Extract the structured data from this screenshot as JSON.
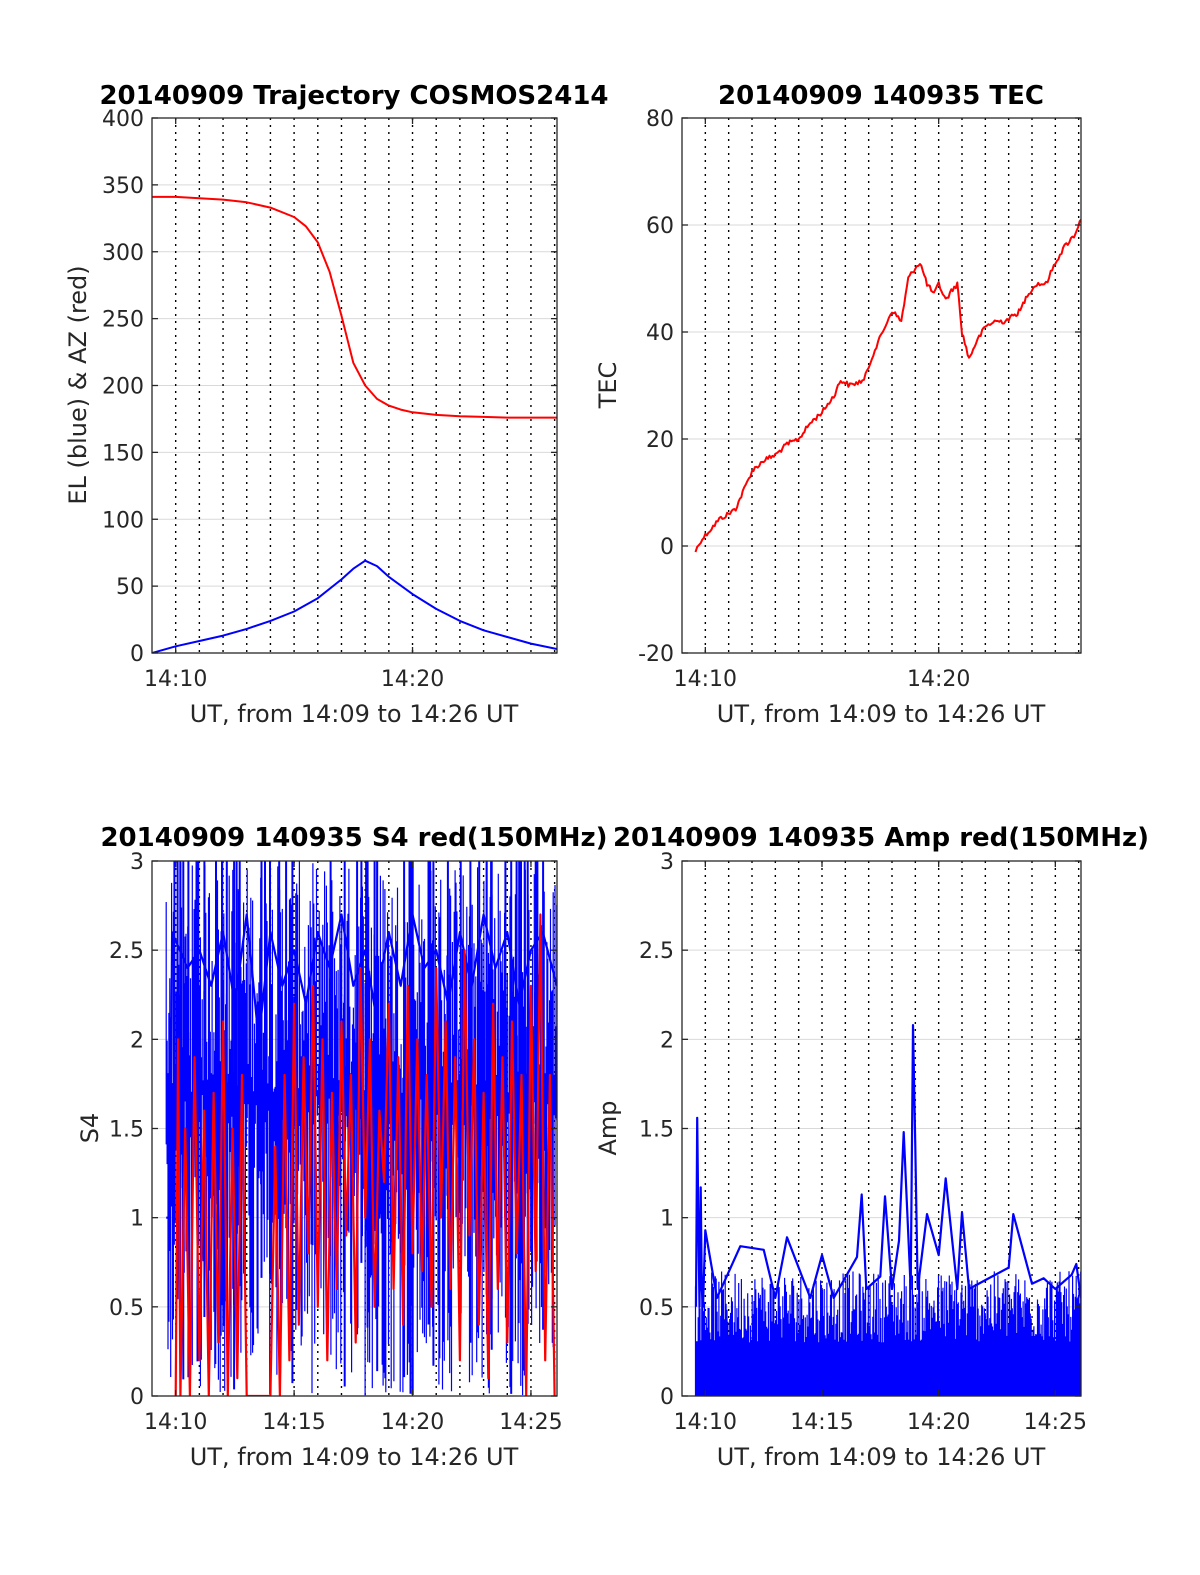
{
  "colors": {
    "red": "#ff0000",
    "blue": "#0000ff",
    "grid": "#d9d9d9",
    "vgrid": "#000000",
    "axis": "#262626"
  },
  "chart_data": [
    {
      "type": "line",
      "title": "20140909 Trajectory COSMOS2414",
      "xlabel": "UT, from 14:09 to 14:26 UT",
      "ylabel": "EL (blue) & AZ (red)",
      "xlim": [
        9.0,
        26.1
      ],
      "ylim": [
        0,
        400
      ],
      "yticks": [
        0,
        50,
        100,
        150,
        200,
        250,
        300,
        350,
        400
      ],
      "xticks": [
        {
          "v": 10,
          "label": "14:10"
        },
        {
          "v": 20,
          "label": "14:20"
        }
      ],
      "vgrid_minutes": [
        10,
        11,
        12,
        13,
        14,
        15,
        16,
        17,
        18,
        19,
        20,
        21,
        22,
        23,
        24,
        25,
        26
      ],
      "grid": true,
      "series": [
        {
          "color": "blue",
          "x": [
            9.0,
            10.0,
            11.0,
            12.0,
            13.0,
            14.0,
            15.0,
            16.0,
            17.0,
            17.5,
            18.0,
            18.5,
            19.0,
            20.0,
            21.0,
            22.0,
            23.0,
            24.0,
            25.0,
            26.1
          ],
          "y": [
            0,
            5,
            9,
            13,
            18,
            24,
            31,
            41,
            55,
            63,
            69,
            65,
            57,
            44,
            33,
            24,
            17,
            12,
            7,
            3
          ]
        },
        {
          "color": "red",
          "x": [
            9.0,
            10.0,
            11.0,
            12.0,
            13.0,
            14.0,
            15.0,
            15.5,
            16.0,
            16.5,
            17.0,
            17.5,
            18.0,
            18.5,
            19.0,
            19.5,
            20.0,
            21.0,
            22.0,
            23.0,
            24.0,
            25.0,
            26.1
          ],
          "y": [
            341,
            341,
            340,
            339,
            337,
            333,
            326,
            319,
            307,
            285,
            252,
            217,
            200,
            190,
            185,
            182,
            180,
            178,
            177,
            176.5,
            176,
            176,
            176
          ]
        }
      ]
    },
    {
      "type": "line",
      "title": "20140909 140935 TEC",
      "xlabel": "UT, from 14:09 to 14:26 UT",
      "ylabel": "TEC",
      "xlim": [
        9.0,
        26.1
      ],
      "ylim": [
        -20,
        80
      ],
      "yticks": [
        -20,
        0,
        20,
        40,
        60,
        80
      ],
      "xticks": [
        {
          "v": 10,
          "label": "14:10"
        },
        {
          "v": 20,
          "label": "14:20"
        }
      ],
      "vgrid_minutes": [
        10,
        11,
        12,
        13,
        14,
        15,
        16,
        17,
        18,
        19,
        20,
        21,
        22,
        23,
        24,
        25,
        26
      ],
      "grid": true,
      "series": [
        {
          "color": "red",
          "x": [
            9.58,
            9.8,
            10.2,
            10.6,
            11.0,
            11.3,
            11.6,
            12.0,
            12.5,
            13.0,
            13.5,
            14.0,
            14.5,
            15.0,
            15.5,
            15.8,
            16.2,
            16.8,
            17.2,
            17.6,
            18.0,
            18.4,
            18.7,
            19.0,
            19.2,
            19.5,
            19.8,
            20.0,
            20.3,
            20.6,
            20.8,
            21.0,
            21.3,
            21.6,
            22.0,
            22.4,
            22.8,
            23.2,
            23.5,
            23.8,
            24.2,
            24.6,
            25.0,
            25.4,
            25.8,
            26.1
          ],
          "y": [
            -1,
            1,
            3,
            5,
            6,
            7,
            10,
            14,
            16,
            17,
            19,
            20,
            23,
            25,
            28,
            31,
            30,
            31,
            36,
            40,
            44,
            42,
            50,
            52,
            53,
            49,
            47,
            49,
            46,
            48,
            49,
            40,
            35,
            38,
            41,
            42,
            42,
            43,
            44,
            47,
            49,
            49,
            53,
            56,
            58,
            61
          ]
        }
      ]
    },
    {
      "type": "line",
      "title": "20140909 140935 S4 red(150MHz)",
      "xlabel": "UT, from 14:09 to 14:26 UT",
      "ylabel": "S4",
      "xlim": [
        9.0,
        26.1
      ],
      "ylim": [
        0,
        3
      ],
      "yticks": [
        0,
        0.5,
        1,
        1.5,
        2,
        2.5,
        3
      ],
      "xticks": [
        {
          "v": 10,
          "label": "14:10"
        },
        {
          "v": 15,
          "label": "14:15"
        },
        {
          "v": 20,
          "label": "14:20"
        },
        {
          "v": 25,
          "label": "14:25"
        }
      ],
      "vgrid_minutes": [
        10,
        11,
        12,
        13,
        14,
        15,
        16,
        17,
        18,
        19,
        20,
        21,
        22,
        23,
        24,
        25,
        26
      ],
      "grid": true,
      "noise_band": {
        "color": "blue",
        "x_start": 9.6,
        "x_end": 26.1,
        "y_low": 0.0,
        "y_high": 3.0,
        "dense_low": 1.7
      },
      "series": [
        {
          "color": "blue",
          "x": [
            9.6,
            9.7,
            9.75,
            9.8,
            9.85,
            10.5,
            11.0,
            11.5,
            12.0,
            12.5,
            13.0,
            13.5,
            14.0,
            14.5,
            15.0,
            15.5,
            16.0,
            16.5,
            17.0,
            17.5,
            18.0,
            18.5,
            18.6,
            18.7,
            19.0,
            19.5,
            20.0,
            20.5,
            21.0,
            21.5,
            22.0,
            22.5,
            23.0,
            23.5,
            24.0,
            24.5,
            25.0,
            25.5,
            26.1
          ],
          "y": [
            1.0,
            1.0,
            1.2,
            1.65,
            2.6,
            2.4,
            2.5,
            2.3,
            2.6,
            2.2,
            2.7,
            2.0,
            2.6,
            2.3,
            2.5,
            2.2,
            2.6,
            2.4,
            2.7,
            2.3,
            2.5,
            2.1,
            1.0,
            2.4,
            2.6,
            2.3,
            2.7,
            2.4,
            2.5,
            2.2,
            2.6,
            2.3,
            2.7,
            2.4,
            2.6,
            2.2,
            2.5,
            2.6,
            2.3
          ]
        },
        {
          "color": "red",
          "x": [
            10.0,
            10.1,
            10.2,
            10.4,
            10.6,
            10.8,
            11.0,
            11.2,
            11.4,
            11.6,
            11.8,
            12.0,
            12.2,
            12.4,
            12.6,
            12.8,
            13.0,
            13.2,
            13.4,
            13.6,
            13.8,
            14.0,
            14.2,
            14.4,
            14.6,
            14.8,
            15.0,
            15.2,
            15.4,
            15.6,
            15.8,
            16.0,
            16.2,
            16.4,
            16.6,
            16.8,
            17.0,
            17.2,
            17.4,
            17.6,
            17.8,
            18.0,
            18.2,
            18.4,
            18.6,
            18.8,
            19.0,
            19.2,
            19.4,
            19.6,
            19.8,
            20.0,
            20.2,
            20.4,
            20.6,
            20.8,
            21.0,
            21.2,
            21.4,
            21.6,
            21.8,
            22.0,
            22.2,
            22.4,
            22.6,
            22.8,
            23.0,
            23.2,
            23.4,
            23.6,
            23.8,
            24.0,
            24.2,
            24.4,
            24.6,
            24.8,
            25.0,
            25.2,
            25.4,
            25.6,
            25.8,
            26.0
          ],
          "y": [
            0,
            2.0,
            0,
            1.5,
            0,
            1.9,
            0.2,
            1.6,
            0,
            1.7,
            0.3,
            2.1,
            0,
            1.5,
            0.1,
            1.8,
            0,
            0,
            0,
            0,
            0,
            0,
            1.4,
            0,
            1.8,
            0.2,
            2.2,
            0.4,
            1.9,
            0.8,
            2.3,
            0.5,
            2.0,
            0.2,
            1.7,
            0.6,
            2.1,
            0.9,
            1.8,
            0.3,
            2.4,
            1.0,
            2.0,
            0.5,
            1.6,
            1.2,
            2.2,
            0.6,
            1.9,
            0.4,
            2.3,
            0.8,
            2.0,
            0.7,
            1.8,
            0.5,
            2.4,
            1.0,
            2.1,
            0.6,
            1.9,
            0.2,
            2.5,
            0.9,
            2.0,
            0.4,
            1.7,
            0.1,
            2.2,
            0.6,
            1.9,
            0.3,
            2.1,
            0.8,
            1.8,
            0.0,
            2.3,
            0.7,
            2.7,
            0.2,
            1.8,
            0.0
          ]
        }
      ]
    },
    {
      "type": "line",
      "title": "20140909 140935 Amp red(150MHz)",
      "xlabel": "UT, from 14:09 to 14:26 UT",
      "ylabel": "Amp",
      "xlim": [
        9.0,
        26.1
      ],
      "ylim": [
        0,
        3
      ],
      "yticks": [
        0,
        0.5,
        1,
        1.5,
        2,
        2.5,
        3
      ],
      "xticks": [
        {
          "v": 10,
          "label": "14:10"
        },
        {
          "v": 15,
          "label": "14:15"
        },
        {
          "v": 20,
          "label": "14:20"
        },
        {
          "v": 25,
          "label": "14:25"
        }
      ],
      "vgrid_minutes": [
        10,
        11,
        12,
        13,
        14,
        15,
        16,
        17,
        18,
        19,
        20,
        21,
        22,
        23,
        24,
        25,
        26
      ],
      "grid": true,
      "noise_band": {
        "color": "blue",
        "x_start": 9.58,
        "x_end": 26.1,
        "y_low": 0.0,
        "y_high": 0.7,
        "dense_low": 0.0
      },
      "series": [
        {
          "color": "blue",
          "x": [
            9.6,
            9.65,
            9.7,
            9.75,
            9.8,
            9.85,
            9.9,
            10.0,
            10.5,
            11.5,
            12.5,
            13.0,
            13.5,
            14.5,
            15.0,
            15.5,
            16.5,
            16.7,
            16.9,
            17.5,
            17.7,
            18.0,
            18.3,
            18.5,
            18.8,
            18.9,
            19.0,
            19.1,
            19.5,
            20.0,
            20.3,
            20.8,
            21.0,
            21.3,
            22.0,
            23.0,
            23.2,
            24.0,
            24.5,
            25.0,
            25.7,
            25.9,
            26.1
          ],
          "y": [
            0.5,
            1.56,
            1.0,
            0.5,
            1.17,
            0.6,
            0.5,
            0.93,
            0.55,
            0.84,
            0.82,
            0.55,
            0.89,
            0.55,
            0.79,
            0.55,
            0.78,
            1.13,
            0.6,
            0.67,
            1.12,
            0.6,
            0.87,
            1.48,
            0.6,
            2.08,
            1.4,
            0.6,
            1.02,
            0.79,
            1.22,
            0.6,
            1.03,
            0.6,
            0.65,
            0.72,
            1.02,
            0.63,
            0.66,
            0.6,
            0.68,
            0.74,
            0.55
          ]
        }
      ]
    }
  ]
}
